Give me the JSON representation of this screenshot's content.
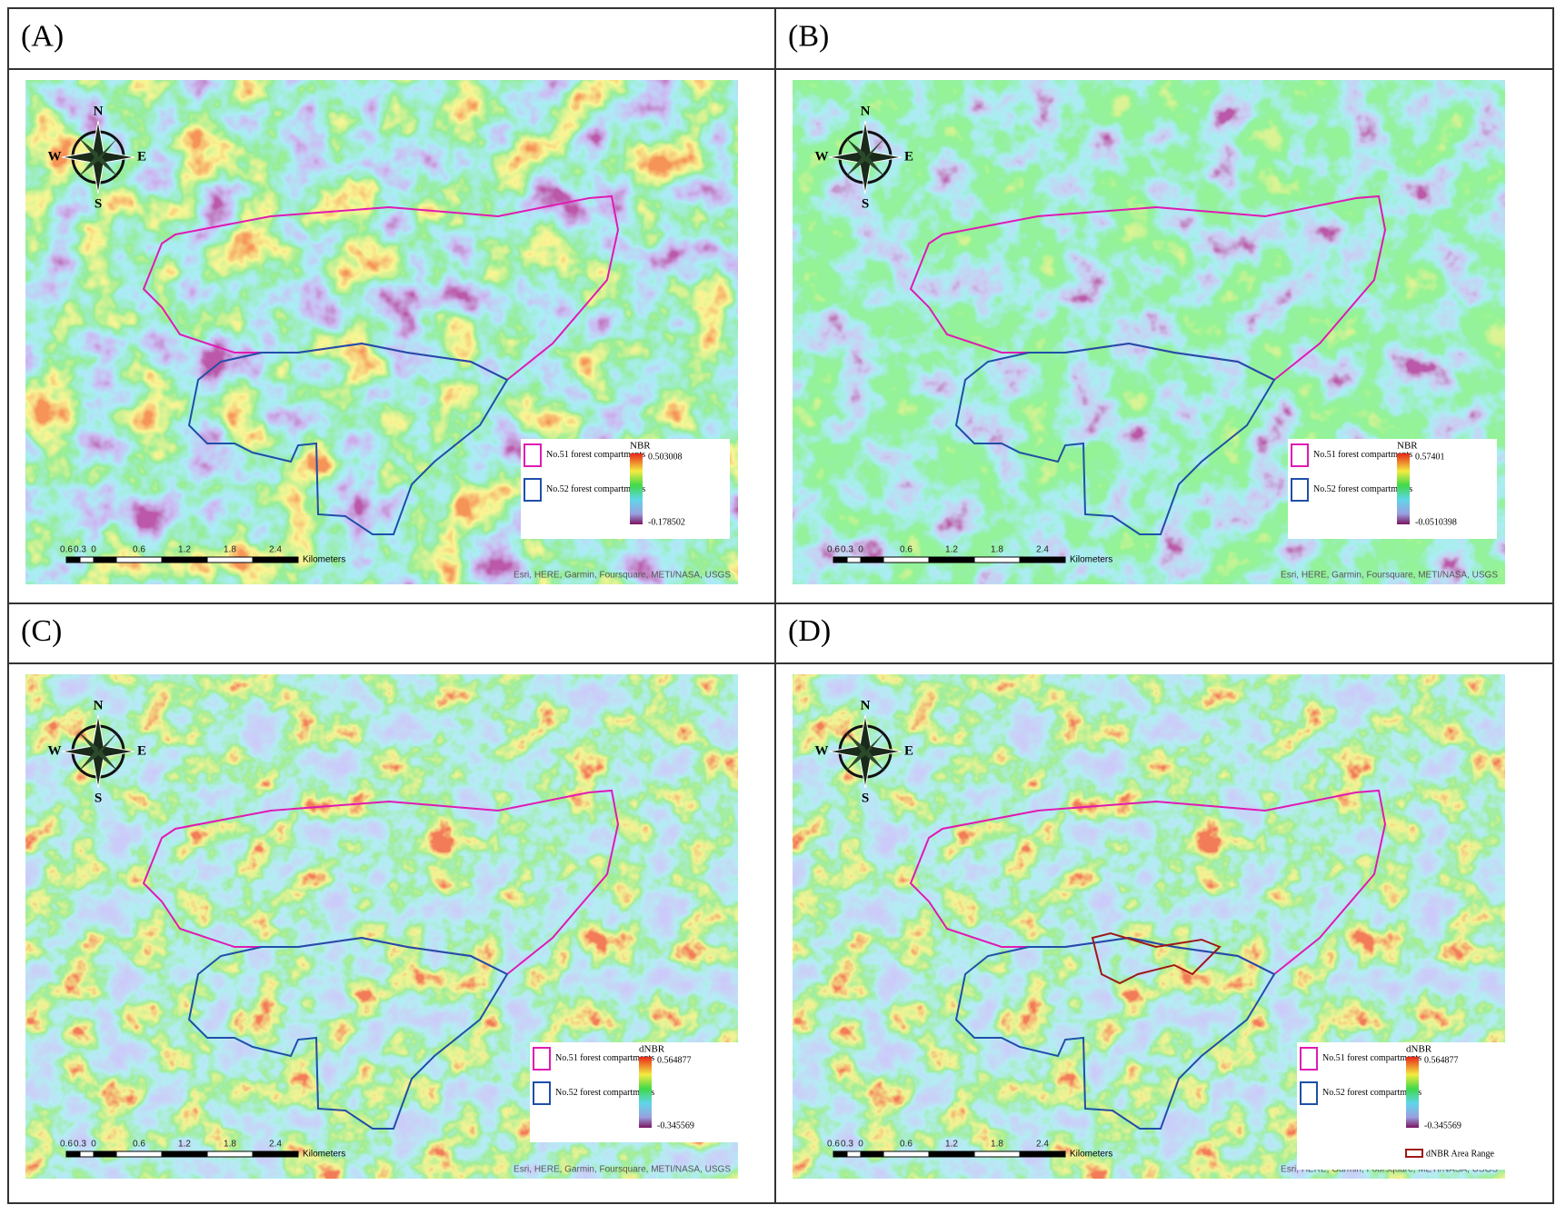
{
  "compass": {
    "n": "N",
    "s": "S",
    "e": "E",
    "w": "W"
  },
  "scale": {
    "ticks": [
      "0.6",
      "0.3",
      "0",
      "0.6",
      "1.2",
      "1.8",
      "2.4"
    ],
    "unit": "Kilometers"
  },
  "attribution": "Esri, HERE, Garmin, Foursquare, METI/NASA, USGS",
  "legend_items": [
    "No.51 forest compartments",
    "No.52 forest compartments"
  ],
  "panels": [
    {
      "label": "(A)",
      "index": "NBR",
      "max": "0.503008",
      "min": "-0.178502"
    },
    {
      "label": "(B)",
      "index": "NBR",
      "max": "0.57401",
      "min": "-0.0510398"
    },
    {
      "label": "(C)",
      "index": "dNBR",
      "max": "0.564877",
      "min": "-0.345569"
    },
    {
      "label": "(D)",
      "index": "dNBR",
      "max": "0.564877",
      "min": "-0.345569",
      "range_label": "dNBR Area Range"
    }
  ]
}
